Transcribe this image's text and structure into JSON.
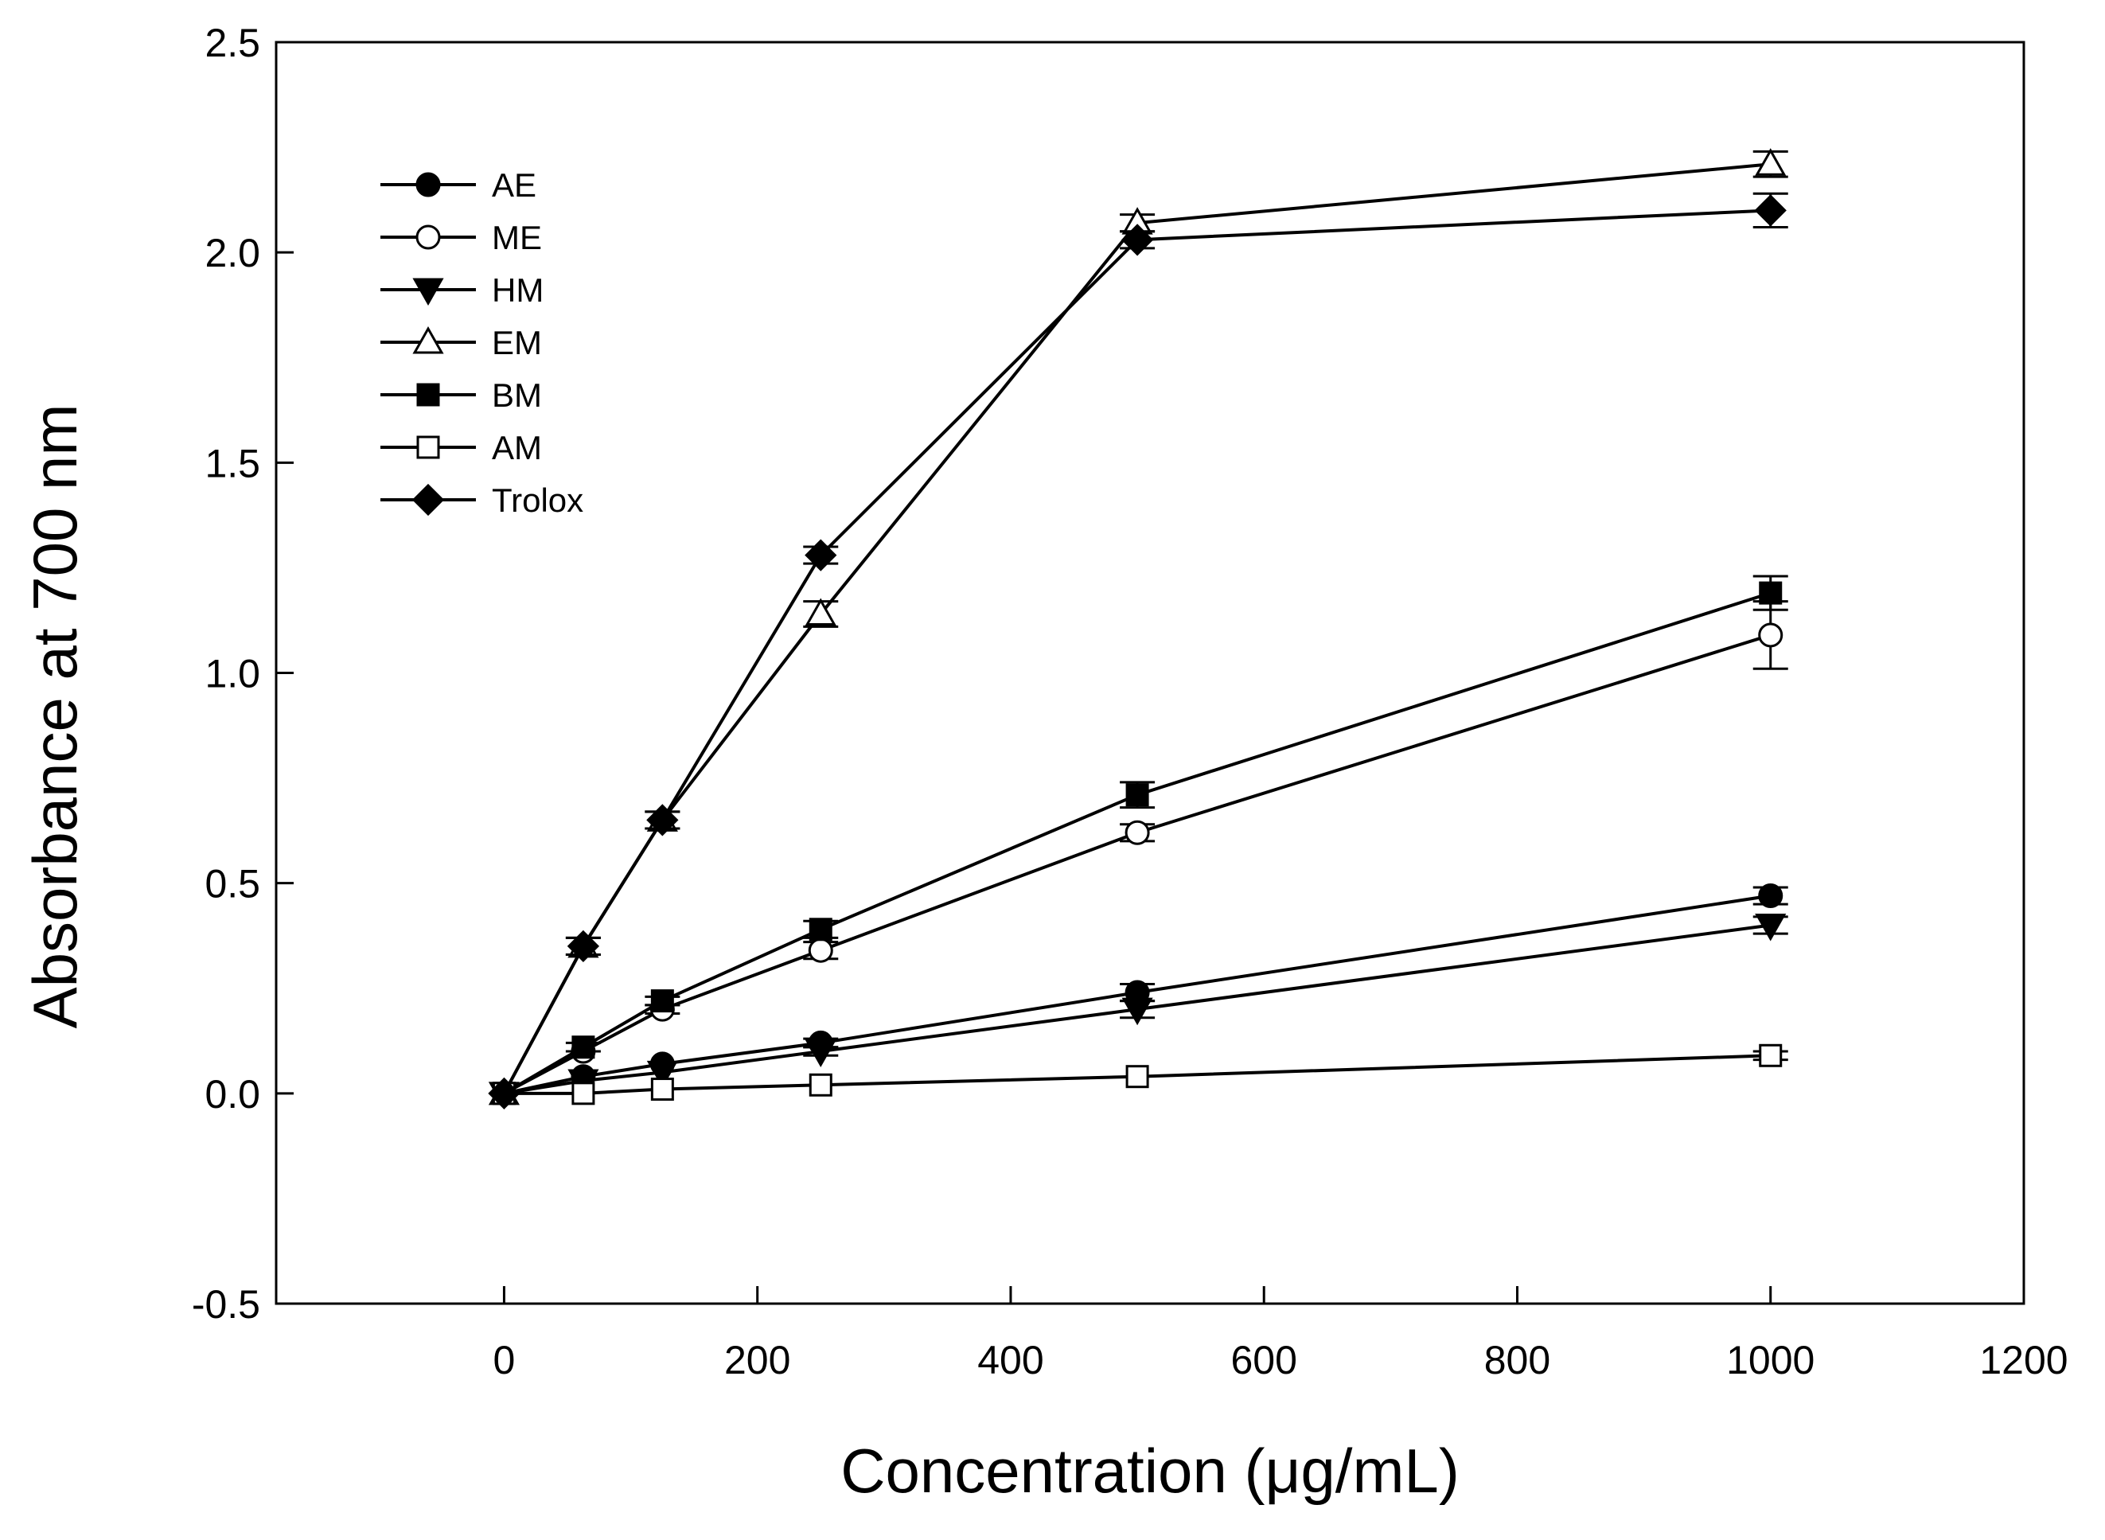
{
  "chart_data": {
    "type": "line",
    "title": "",
    "xlabel": "Concentration (μg/mL)",
    "ylabel": "Absorbance at 700 nm",
    "xlim": [
      -180,
      1200
    ],
    "ylim": [
      -0.5,
      2.5
    ],
    "xticks": [
      0,
      200,
      400,
      600,
      800,
      1000,
      1200
    ],
    "xtick_labels": [
      "0",
      "200",
      "400",
      "600",
      "800",
      "1000",
      "1200"
    ],
    "yticks": [
      -0.5,
      0.0,
      0.5,
      1.0,
      1.5,
      2.0,
      2.5
    ],
    "ytick_labels": [
      "-0.5",
      "0.0",
      "0.5",
      "1.0",
      "1.5",
      "2.0",
      "2.5"
    ],
    "grid": false,
    "legend_position": "top-left",
    "x": [
      0,
      62.5,
      125,
      250,
      500,
      1000
    ],
    "series": [
      {
        "name": "AE",
        "marker": "circle",
        "fill": "filled",
        "values": [
          0.0,
          0.04,
          0.07,
          0.12,
          0.24,
          0.47
        ],
        "errors": [
          0.005,
          0.005,
          0.005,
          0.01,
          0.02,
          0.02
        ]
      },
      {
        "name": "ME",
        "marker": "circle",
        "fill": "open",
        "values": [
          0.0,
          0.1,
          0.2,
          0.34,
          0.62,
          1.09
        ],
        "errors": [
          0.005,
          0.005,
          0.01,
          0.02,
          0.02,
          0.08
        ]
      },
      {
        "name": "HM",
        "marker": "triangle-down",
        "fill": "filled",
        "values": [
          0.0,
          0.03,
          0.05,
          0.1,
          0.2,
          0.4
        ],
        "errors": [
          0.005,
          0.005,
          0.005,
          0.01,
          0.02,
          0.02
        ]
      },
      {
        "name": "EM",
        "marker": "triangle-up",
        "fill": "open",
        "values": [
          0.0,
          0.35,
          0.65,
          1.14,
          2.07,
          2.21
        ],
        "errors": [
          0.005,
          0.02,
          0.02,
          0.03,
          0.02,
          0.03
        ]
      },
      {
        "name": "BM",
        "marker": "square",
        "fill": "filled",
        "values": [
          0.0,
          0.11,
          0.22,
          0.39,
          0.71,
          1.19
        ],
        "errors": [
          0.005,
          0.01,
          0.01,
          0.02,
          0.03,
          0.04
        ]
      },
      {
        "name": "AM",
        "marker": "square",
        "fill": "open",
        "values": [
          0.0,
          0.0,
          0.01,
          0.02,
          0.04,
          0.09
        ],
        "errors": [
          0.005,
          0.005,
          0.005,
          0.005,
          0.005,
          0.01
        ]
      },
      {
        "name": "Trolox",
        "marker": "diamond",
        "fill": "filled",
        "values": [
          0.0,
          0.35,
          0.65,
          1.28,
          2.03,
          2.1
        ],
        "errors": [
          0.005,
          0.02,
          0.02,
          0.02,
          0.02,
          0.04
        ]
      }
    ]
  }
}
